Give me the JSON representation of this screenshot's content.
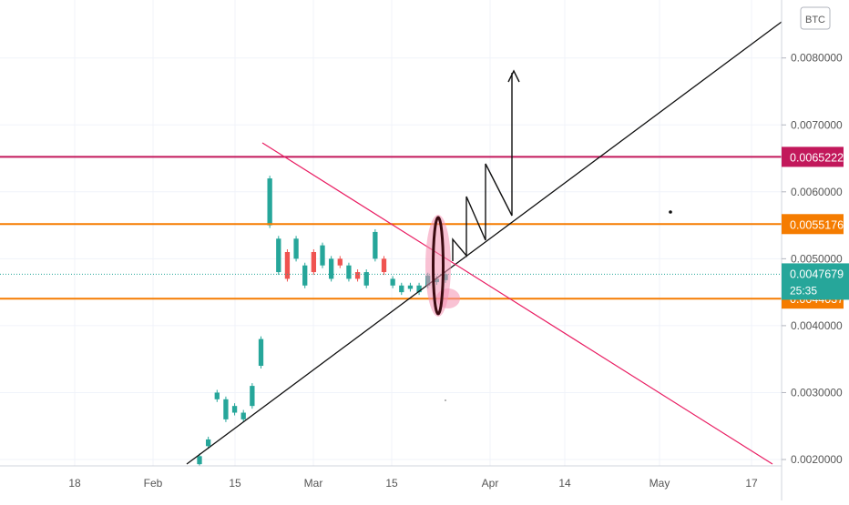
{
  "chart_data": {
    "type": "candlestick",
    "currency": "BTC",
    "x_ticks": [
      "18",
      "Feb",
      "15",
      "Mar",
      "15",
      "Apr",
      "14",
      "May",
      "17"
    ],
    "y_ticks": [
      "0.0020000",
      "0.0030000",
      "0.0040000",
      "0.0050000",
      "0.0060000",
      "0.0070000",
      "0.0080000"
    ],
    "ylim": [
      0.00193,
      0.00873
    ],
    "grid": true,
    "levels": [
      {
        "label": "0.0065222",
        "value": 0.0065222,
        "color": "#c2185b",
        "line": "solid"
      },
      {
        "label": "0.0055176",
        "value": 0.0055176,
        "color": "#f57c00",
        "line": "solid"
      },
      {
        "label": "0.0044037",
        "value": 0.0044037,
        "color": "#f57c00",
        "line": "solid"
      }
    ],
    "last_price": {
      "label": "0.0047679",
      "value": 0.0047679,
      "countdown": "25:35",
      "color": "#26a69a"
    },
    "price_series": [
      [
        0.00193,
        0.00205
      ],
      [
        0.0022,
        0.0023
      ],
      [
        0.0029,
        0.003
      ],
      [
        0.0026,
        0.0029
      ],
      [
        0.0027,
        0.0028
      ],
      [
        0.0026,
        0.0027
      ],
      [
        0.0028,
        0.0031
      ],
      [
        0.0034,
        0.0038
      ],
      [
        0.0055,
        0.0062
      ],
      [
        0.0048,
        0.0053
      ],
      [
        0.0051,
        0.0047
      ],
      [
        0.005,
        0.0053
      ],
      [
        0.0046,
        0.0049
      ],
      [
        0.0051,
        0.0048
      ],
      [
        0.0049,
        0.0052
      ],
      [
        0.0047,
        0.005
      ],
      [
        0.005,
        0.0049
      ],
      [
        0.0047,
        0.0049
      ],
      [
        0.0048,
        0.0047
      ],
      [
        0.0046,
        0.0048
      ],
      [
        0.005,
        0.0054
      ],
      [
        0.005,
        0.0048
      ],
      [
        0.0046,
        0.0047
      ],
      [
        0.0045,
        0.0046
      ],
      [
        0.00455,
        0.0046
      ],
      [
        0.0045,
        0.0046
      ],
      [
        0.0046,
        0.00475
      ],
      [
        0.00465,
        0.0047
      ],
      [
        0.00468,
        0.00477
      ]
    ]
  }
}
